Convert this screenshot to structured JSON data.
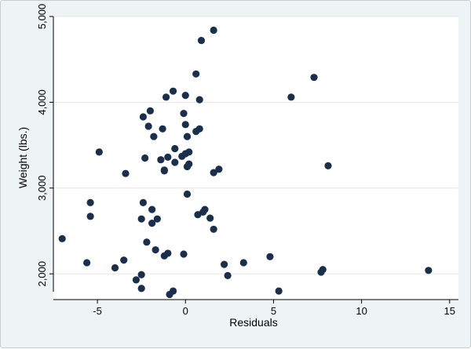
{
  "chart_data": {
    "type": "scatter",
    "xlabel": "Residuals",
    "ylabel": "Weight (lbs.)",
    "xlim": [
      -7.5,
      15.5
    ],
    "ylim": [
      1700,
      5000
    ],
    "x_ticks": [
      -5,
      0,
      5,
      10,
      15
    ],
    "x_tick_labels": [
      "-5",
      "0",
      "5",
      "10",
      "15"
    ],
    "y_ticks": [
      2000,
      3000,
      4000,
      5000
    ],
    "y_tick_labels": [
      "2,000",
      "3,000",
      "4,000",
      "5,000"
    ],
    "grid": "horizontal",
    "marker_color": "#1a2f4b",
    "points": [
      {
        "x": -7.0,
        "y": 2410
      },
      {
        "x": -5.6,
        "y": 2130
      },
      {
        "x": -5.4,
        "y": 2830
      },
      {
        "x": -5.4,
        "y": 2670
      },
      {
        "x": -4.9,
        "y": 3420
      },
      {
        "x": -4.0,
        "y": 2070
      },
      {
        "x": -3.5,
        "y": 2160
      },
      {
        "x": -3.4,
        "y": 3170
      },
      {
        "x": -2.8,
        "y": 1930
      },
      {
        "x": -2.5,
        "y": 1990
      },
      {
        "x": -2.5,
        "y": 1830
      },
      {
        "x": -2.5,
        "y": 2640
      },
      {
        "x": -2.4,
        "y": 2830
      },
      {
        "x": -2.4,
        "y": 3830
      },
      {
        "x": -2.3,
        "y": 3350
      },
      {
        "x": -2.2,
        "y": 2370
      },
      {
        "x": -2.1,
        "y": 3720
      },
      {
        "x": -2.0,
        "y": 3900
      },
      {
        "x": -1.9,
        "y": 2750
      },
      {
        "x": -1.9,
        "y": 2590
      },
      {
        "x": -1.8,
        "y": 3600
      },
      {
        "x": -1.7,
        "y": 2280
      },
      {
        "x": -1.6,
        "y": 2640
      },
      {
        "x": -1.4,
        "y": 3330
      },
      {
        "x": -1.3,
        "y": 3690
      },
      {
        "x": -1.2,
        "y": 3200
      },
      {
        "x": -1.2,
        "y": 3210
      },
      {
        "x": -1.2,
        "y": 2210
      },
      {
        "x": -1.1,
        "y": 4060
      },
      {
        "x": -1.0,
        "y": 2240
      },
      {
        "x": -1.0,
        "y": 3360
      },
      {
        "x": -0.9,
        "y": 1760
      },
      {
        "x": -0.7,
        "y": 1800
      },
      {
        "x": -0.7,
        "y": 4130
      },
      {
        "x": -0.6,
        "y": 3300
      },
      {
        "x": -0.6,
        "y": 3460
      },
      {
        "x": -0.2,
        "y": 3370
      },
      {
        "x": -0.1,
        "y": 3870
      },
      {
        "x": -0.1,
        "y": 2230
      },
      {
        "x": 0.0,
        "y": 3740
      },
      {
        "x": 0.0,
        "y": 4080
      },
      {
        "x": 0.0,
        "y": 3400
      },
      {
        "x": 0.1,
        "y": 3250
      },
      {
        "x": 0.1,
        "y": 2930
      },
      {
        "x": 0.1,
        "y": 3600
      },
      {
        "x": 0.2,
        "y": 3420
      },
      {
        "x": 0.2,
        "y": 3280
      },
      {
        "x": 0.6,
        "y": 3660
      },
      {
        "x": 0.6,
        "y": 4330
      },
      {
        "x": 0.7,
        "y": 2690
      },
      {
        "x": 0.8,
        "y": 4030
      },
      {
        "x": 0.8,
        "y": 3690
      },
      {
        "x": 0.9,
        "y": 4720
      },
      {
        "x": 1.0,
        "y": 2720
      },
      {
        "x": 1.1,
        "y": 2750
      },
      {
        "x": 1.4,
        "y": 2650
      },
      {
        "x": 1.6,
        "y": 4840
      },
      {
        "x": 1.6,
        "y": 3180
      },
      {
        "x": 1.6,
        "y": 2520
      },
      {
        "x": 1.9,
        "y": 3220
      },
      {
        "x": 2.2,
        "y": 2110
      },
      {
        "x": 2.4,
        "y": 1980
      },
      {
        "x": 3.3,
        "y": 2130
      },
      {
        "x": 4.8,
        "y": 2200
      },
      {
        "x": 5.3,
        "y": 1800
      },
      {
        "x": 6.0,
        "y": 4060
      },
      {
        "x": 7.3,
        "y": 4290
      },
      {
        "x": 7.7,
        "y": 2020
      },
      {
        "x": 7.8,
        "y": 2050
      },
      {
        "x": 8.1,
        "y": 3260
      },
      {
        "x": 13.8,
        "y": 2040
      }
    ]
  }
}
